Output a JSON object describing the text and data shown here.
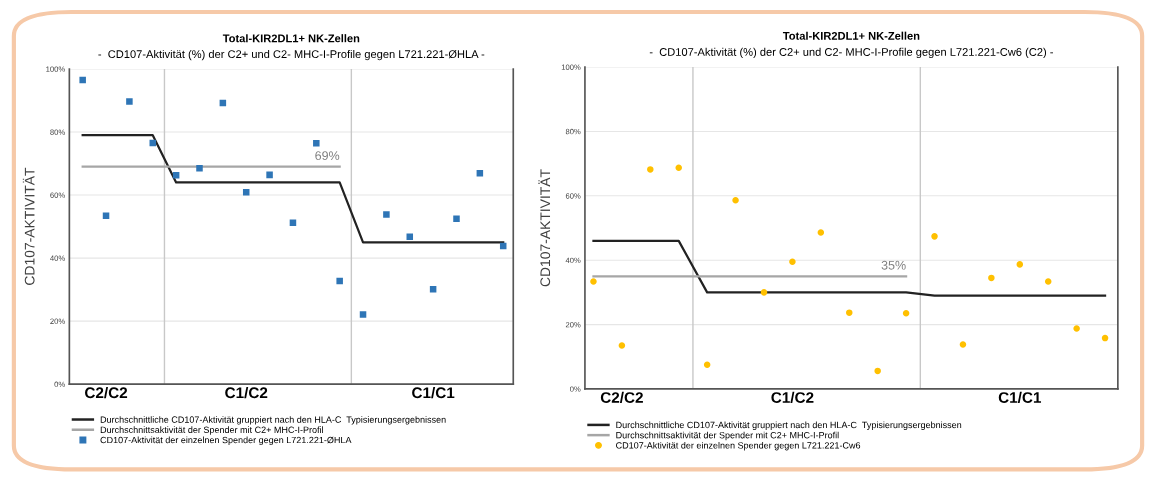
{
  "chart_data": [
    {
      "type": "scatter",
      "title": "Total-KIR2DL1+ NK-Zellen",
      "subtitle": "-  CD107-Aktivität (%) der C2+ und C2- MHC-I-Profile gegen L721.221-ØHLA -",
      "ylabel": "CD107-AKTIVITÄT",
      "categories": [
        null,
        "C2/C2",
        null,
        null,
        null,
        null,
        null,
        "C1/C2",
        null,
        null,
        null,
        null,
        null,
        null,
        null,
        "C1/C1",
        null,
        null,
        null
      ],
      "ylim": [
        0,
        100
      ],
      "yticks": [
        {
          "value": 0,
          "label": "0%"
        },
        {
          "value": 20,
          "label": "20%"
        },
        {
          "value": 40,
          "label": "40%"
        },
        {
          "value": 60,
          "label": "60%"
        },
        {
          "value": 80,
          "label": "80%"
        },
        {
          "value": 100,
          "label": "100%"
        }
      ],
      "grid": "y",
      "legend": "bottom",
      "annotations": [
        {
          "text": "69%",
          "y": 69
        }
      ],
      "series": [
        {
          "name": "Durchschnittliche CD107-Aktivität gruppiert nach den HLA-C  Typisierungsergebnissen",
          "type": "line",
          "color": "#222222",
          "marker": "none",
          "line_style": "solid",
          "values": [
            79,
            79,
            79,
            79,
            64,
            64,
            64,
            64,
            64,
            64,
            64,
            64,
            45,
            45,
            45,
            45,
            45,
            45,
            45
          ]
        },
        {
          "name": "Durchschnittsaktivität der Spender mit C2+ MHC-I-Profil",
          "type": "line",
          "color": "#a6a6a6",
          "marker": "none",
          "line_style": "solid",
          "values": [
            69,
            69,
            69,
            69,
            69,
            69,
            69,
            69,
            69,
            69,
            69,
            69,
            null,
            null,
            null,
            null,
            null,
            null,
            null
          ]
        },
        {
          "name": "CD107-Aktivität der einzelnen Spender gegen L721.221-ØHLA",
          "color": "#2e75b6",
          "marker": "square",
          "values": [
            96.5,
            53.4,
            89.7,
            76.5,
            66.3,
            68.5,
            89.2,
            60.9,
            66.4,
            51.2,
            76.4,
            32.7,
            22.1,
            53.8,
            46.8,
            30.1,
            52.5,
            66.9,
            43.8
          ]
        }
      ]
    },
    {
      "type": "scatter",
      "title": "Total-KIR2DL1+ NK-Zellen",
      "subtitle": "-  CD107-Aktivität (%) der C2+ und C2- MHC-I-Profile gegen L721.221-Cw6 (C2) -",
      "ylabel": "CD107-AKTIVITÄT",
      "categories": [
        null,
        "C2/C2",
        null,
        null,
        null,
        null,
        null,
        "C1/C2",
        null,
        null,
        null,
        null,
        null,
        null,
        null,
        "C1/C1",
        null,
        null,
        null
      ],
      "ylim": [
        0,
        100
      ],
      "yticks": [
        {
          "value": 0,
          "label": "0%"
        },
        {
          "value": 20,
          "label": "20%"
        },
        {
          "value": 40,
          "label": "40%"
        },
        {
          "value": 60,
          "label": "60%"
        },
        {
          "value": 80,
          "label": "80%"
        },
        {
          "value": 100,
          "label": "100%"
        }
      ],
      "grid": "y",
      "legend": "bottom",
      "annotations": [
        {
          "text": "35%",
          "y": 35
        }
      ],
      "series": [
        {
          "name": "Durchschnittliche CD107-Aktivität gruppiert nach den HLA-C  Typisierungsergebnissen",
          "type": "line",
          "color": "#222222",
          "marker": "none",
          "line_style": "solid",
          "values": [
            46,
            46,
            46,
            46,
            30,
            30,
            30,
            30,
            30,
            30,
            30,
            30,
            29,
            29,
            29,
            29,
            29,
            29,
            29
          ]
        },
        {
          "name": "Durchschnittsaktivität der Spender mit C2+ MHC-I-Profil",
          "type": "line",
          "color": "#a6a6a6",
          "marker": "none",
          "line_style": "solid",
          "values": [
            35,
            35,
            35,
            35,
            35,
            35,
            35,
            35,
            35,
            35,
            35,
            35,
            null,
            null,
            null,
            null,
            null,
            null,
            null
          ]
        },
        {
          "name": "CD107-Aktivität der einzelnen Spender gegen L721.221-Cw6",
          "color": "#ffc000",
          "marker": "circle",
          "values": [
            33.4,
            13.5,
            68.2,
            68.7,
            7.5,
            58.6,
            30.0,
            39.5,
            48.6,
            23.7,
            5.6,
            23.5,
            47.4,
            13.8,
            34.5,
            38.7,
            33.4,
            18.8,
            15.8
          ]
        }
      ]
    }
  ]
}
